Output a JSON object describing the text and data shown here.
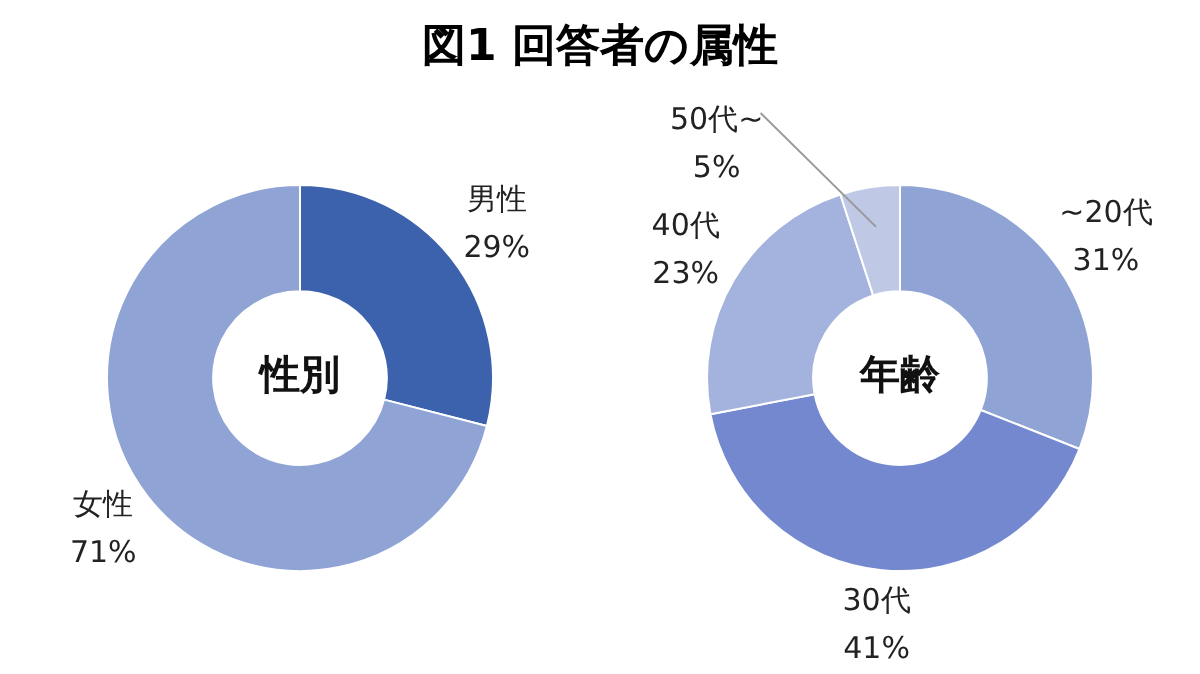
{
  "chart_data": [
    {
      "type": "donut",
      "title": "図1 回答者の属性",
      "annotations": [
        "性別"
      ],
      "categories": [
        "男性",
        "女性"
      ],
      "values": [
        29,
        71
      ],
      "value_labels": [
        "29%",
        "71%"
      ],
      "colors": [
        "#3c61ad",
        "#8fa3d5"
      ],
      "legend": false
    },
    {
      "type": "donut",
      "annotations": [
        "年齢"
      ],
      "categories": [
        "~20代",
        "30代",
        "40代",
        "50代~"
      ],
      "values": [
        31,
        41,
        23,
        5
      ],
      "value_labels": [
        "31%",
        "41%",
        "23%",
        "5%"
      ],
      "colors": [
        "#8fa3d5",
        "#7388cf",
        "#a4b3dd",
        "#bfc9e6"
      ],
      "legend": false
    }
  ]
}
